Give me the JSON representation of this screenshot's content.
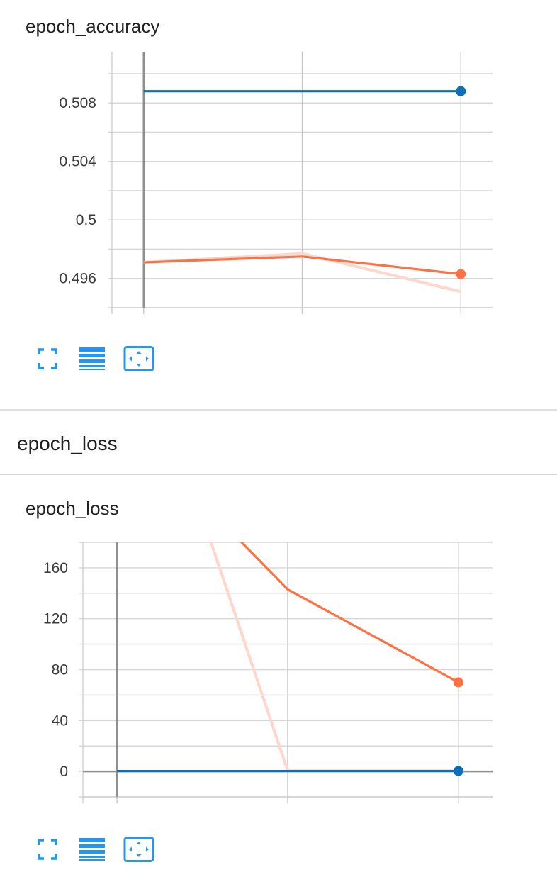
{
  "group": {
    "title": "epoch_loss"
  },
  "toolbar": {
    "fullscreen_icon": "fullscreen-icon",
    "legend_icon": "legend-list-icon",
    "fit_icon": "fit-domain-icon",
    "icon_color": "#2196f3"
  },
  "series_colors": {
    "orange": "#ff7043",
    "blue": "#0b6fb6",
    "orange_raw": "#ffd6cc"
  },
  "chart_data": [
    {
      "type": "line",
      "title": "epoch_accuracy",
      "xlabel": "",
      "ylabel": "",
      "x": [
        0,
        1,
        2
      ],
      "xlim": [
        -0.2,
        2.2
      ],
      "ylim": [
        0.494,
        0.5115
      ],
      "yticks": [
        0.496,
        0.5,
        0.504,
        0.508
      ],
      "ytick_labels": [
        "0.496",
        "0.5",
        "0.504",
        "0.508"
      ],
      "grid": true,
      "series": [
        {
          "color": "#ff7043",
          "values": [
            0.4971,
            0.4975,
            0.4963
          ],
          "raw_values": [
            0.4971,
            0.4977,
            0.4951
          ]
        },
        {
          "color": "#0b6fb6",
          "values": [
            0.5088,
            0.5088,
            0.5088
          ]
        }
      ]
    },
    {
      "type": "line",
      "title": "epoch_loss",
      "xlabel": "",
      "ylabel": "",
      "x": [
        0,
        1,
        2
      ],
      "xlim": [
        -0.2,
        2.2
      ],
      "ylim": [
        -20,
        180
      ],
      "yticks": [
        0,
        40,
        80,
        120,
        160
      ],
      "ytick_labels": [
        "0",
        "40",
        "80",
        "120",
        "160"
      ],
      "grid": true,
      "series": [
        {
          "color": "#ff7043",
          "values": [
            280,
            143,
            70
          ],
          "raw_values": [
            400,
            0.5,
            0.5
          ]
        },
        {
          "color": "#0b6fb6",
          "values": [
            0.3,
            0.3,
            0.3
          ]
        }
      ]
    }
  ]
}
